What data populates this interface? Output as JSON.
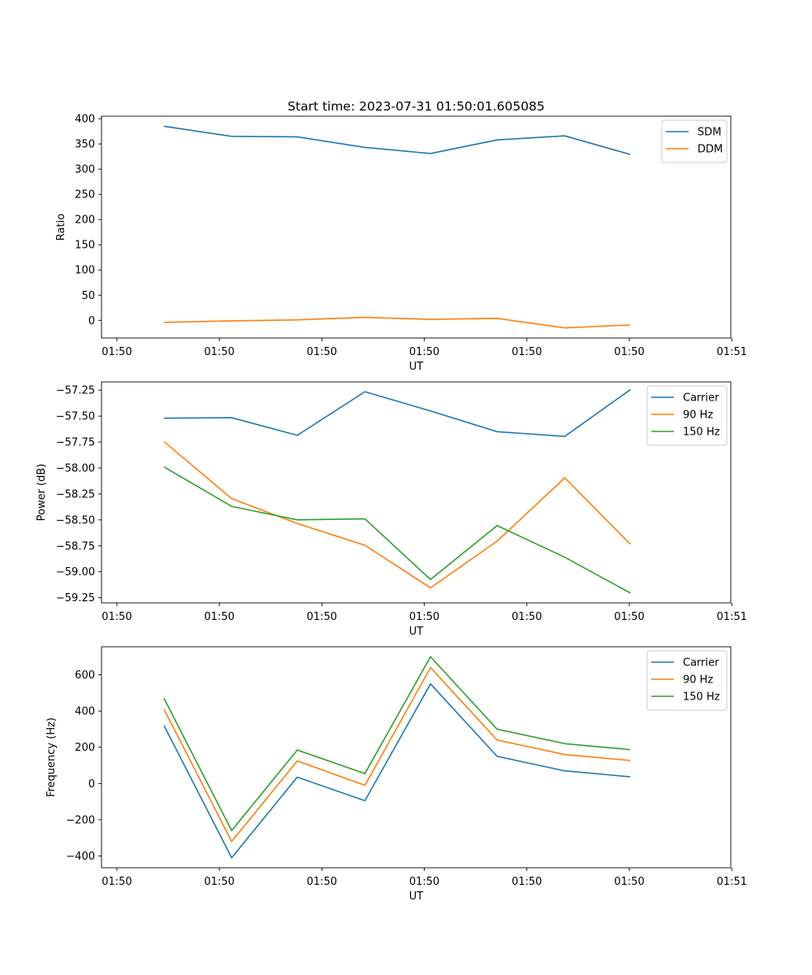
{
  "chart_data": [
    {
      "type": "line",
      "title": "Start time: 2023-07-31 01:50:01.605085",
      "xlabel": "UT",
      "ylabel": "Ratio",
      "xticks": [
        "01:50",
        "01:50",
        "01:50",
        "01:50",
        "01:50",
        "01:50",
        "01:51"
      ],
      "x": [
        0.46,
        1.12,
        1.76,
        2.42,
        3.06,
        3.71,
        4.37,
        5.01
      ],
      "xlim": [
        -0.15,
        5.99
      ],
      "ylim": [
        -35,
        405
      ],
      "yticks": [
        0,
        50,
        100,
        150,
        200,
        250,
        300,
        350,
        400
      ],
      "legend": "top-right",
      "series": [
        {
          "name": "SDM",
          "color": "#1f77b4",
          "values": [
            385,
            365,
            364,
            343,
            331,
            358,
            366,
            329
          ]
        },
        {
          "name": "DDM",
          "color": "#ff7f0e",
          "values": [
            -4,
            -1,
            1,
            6,
            2,
            4,
            -15,
            -9
          ]
        }
      ]
    },
    {
      "type": "line",
      "title": "",
      "xlabel": "UT",
      "ylabel": "Power (dB)",
      "xticks": [
        "01:50",
        "01:50",
        "01:50",
        "01:50",
        "01:50",
        "01:50",
        "01:51"
      ],
      "x": [
        0.46,
        1.12,
        1.76,
        2.42,
        3.06,
        3.71,
        4.37,
        5.01
      ],
      "xlim": [
        -0.15,
        5.99
      ],
      "ylim": [
        -59.3,
        -57.17
      ],
      "yticks": [
        -59.25,
        -59.0,
        -58.75,
        -58.5,
        -58.25,
        -58.0,
        -57.75,
        -57.5,
        -57.25
      ],
      "ytick_labels": [
        "−59.25",
        "−59.00",
        "−58.75",
        "−58.50",
        "−58.25",
        "−58.00",
        "−57.75",
        "−57.50",
        "−57.25"
      ],
      "legend": "top-right",
      "series": [
        {
          "name": "Carrier",
          "color": "#1f77b4",
          "values": [
            -57.52,
            -57.515,
            -57.685,
            -57.265,
            -57.45,
            -57.65,
            -57.695,
            -57.245
          ]
        },
        {
          "name": "90 Hz",
          "color": "#ff7f0e",
          "values": [
            -57.745,
            -58.295,
            -58.535,
            -58.745,
            -59.155,
            -58.705,
            -58.095,
            -58.735
          ]
        },
        {
          "name": "150 Hz",
          "color": "#2ca02c",
          "values": [
            -57.99,
            -58.37,
            -58.5,
            -58.49,
            -59.075,
            -58.555,
            -58.86,
            -59.205
          ]
        }
      ]
    },
    {
      "type": "line",
      "title": "",
      "xlabel": "UT",
      "ylabel": "Frequency (Hz)",
      "xticks": [
        "01:50",
        "01:50",
        "01:50",
        "01:50",
        "01:50",
        "01:50",
        "01:51"
      ],
      "x": [
        0.46,
        1.12,
        1.76,
        2.42,
        3.06,
        3.71,
        4.37,
        5.01
      ],
      "xlim": [
        -0.15,
        5.99
      ],
      "ylim": [
        -465,
        755
      ],
      "yticks": [
        -400,
        -200,
        0,
        200,
        400,
        600
      ],
      "ytick_labels": [
        "−400",
        "−200",
        "0",
        "200",
        "400",
        "600"
      ],
      "legend": "top-right",
      "series": [
        {
          "name": "Carrier",
          "color": "#1f77b4",
          "values": [
            320,
            -410,
            35,
            -95,
            550,
            150,
            70,
            37
          ]
        },
        {
          "name": "90 Hz",
          "color": "#ff7f0e",
          "values": [
            410,
            -320,
            125,
            -10,
            640,
            240,
            160,
            127
          ]
        },
        {
          "name": "150 Hz",
          "color": "#2ca02c",
          "values": [
            470,
            -260,
            185,
            55,
            700,
            300,
            220,
            187
          ]
        }
      ]
    }
  ]
}
